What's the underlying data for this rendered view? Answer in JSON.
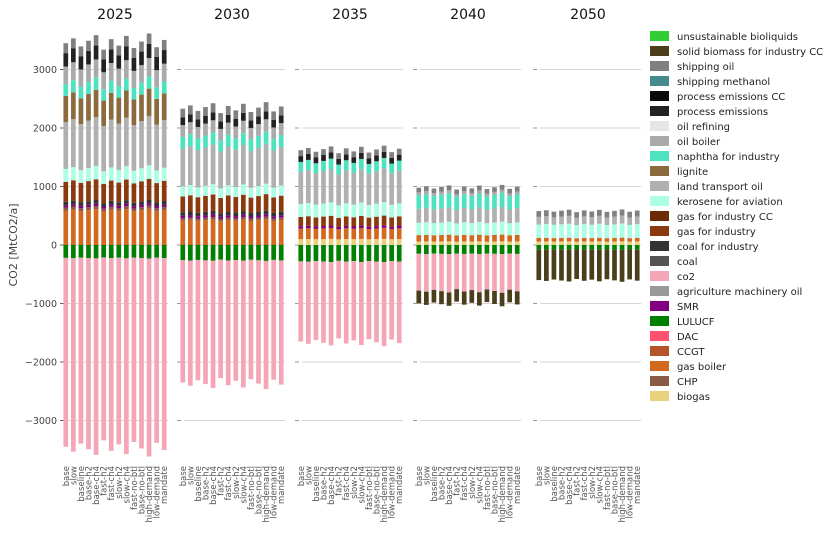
{
  "chart_data": {
    "type": "bar",
    "stacked": true,
    "ylabel": "CO2 [MtCO2/a]",
    "ylim": [
      -3500,
      3500
    ],
    "yticks": [
      -3000,
      -2000,
      -1000,
      0,
      1000,
      2000,
      3000
    ],
    "yticklabels": [
      "−3000",
      "−2000",
      "−1000",
      "0",
      "1000",
      "2000",
      "3000"
    ],
    "grid": true,
    "legend_position": "right",
    "scenarios": [
      "base",
      "slow",
      "baseline",
      "base-h2",
      "base-ch4",
      "fast-h2",
      "fast-ch4",
      "slow-h2",
      "slow-ch4",
      "fast-no-btl",
      "base-no-btl",
      "high-demand",
      "low-demand",
      "mandate"
    ],
    "panels": [
      {
        "year": "2025",
        "segments": [
          {
            "name": "coal",
            "low": 0,
            "high": 0
          },
          {
            "name": "gas boiler",
            "low": 0,
            "high": 590,
            "color": "#d2691e"
          },
          {
            "name": "CHP",
            "low": 590,
            "high": 640,
            "color": "#8a5a44"
          },
          {
            "name": "SMR",
            "low": 640,
            "high": 680,
            "color": "#800080"
          },
          {
            "name": "coal for industry",
            "low": 680,
            "high": 740,
            "color": "#333333"
          },
          {
            "name": "gas for industry",
            "low": 740,
            "high": 1080,
            "color": "#8b3a0f"
          },
          {
            "name": "kerosene for aviation",
            "low": 1080,
            "high": 1300,
            "color": "#aaffe5"
          },
          {
            "name": "land transport oil",
            "low": 1300,
            "high": 2100,
            "color": "#b0b0b0"
          },
          {
            "name": "lignite",
            "low": 2100,
            "high": 2550,
            "color": "#8b6b3d"
          },
          {
            "name": "naphtha for industry",
            "low": 2550,
            "high": 2750,
            "color": "#4de3c0"
          },
          {
            "name": "oil boiler",
            "low": 2750,
            "high": 3050,
            "color": "#aaaaaa"
          },
          {
            "name": "process emissions",
            "low": 3050,
            "high": 3280,
            "color": "#222222"
          },
          {
            "name": "shipping oil",
            "low": 3280,
            "high": 3450,
            "color": "#808080"
          },
          {
            "name": "LULUCF",
            "low": -220,
            "high": 0,
            "color": "#008000"
          },
          {
            "name": "co2",
            "low": -3450,
            "high": -220,
            "color": "#f4a6b6"
          }
        ]
      },
      {
        "year": "2030",
        "segments": [
          {
            "name": "gas boiler",
            "low": 0,
            "high": 420,
            "color": "#d2691e"
          },
          {
            "name": "CHP",
            "low": 420,
            "high": 460,
            "color": "#8a5a44"
          },
          {
            "name": "SMR",
            "low": 460,
            "high": 500,
            "color": "#800080"
          },
          {
            "name": "coal for industry",
            "low": 500,
            "high": 560,
            "color": "#333333"
          },
          {
            "name": "gas for industry",
            "low": 560,
            "high": 830,
            "color": "#8b3a0f"
          },
          {
            "name": "kerosene for aviation",
            "low": 830,
            "high": 1000,
            "color": "#aaffe5"
          },
          {
            "name": "land transport oil",
            "low": 1000,
            "high": 1650,
            "color": "#b0b0b0"
          },
          {
            "name": "naphtha for industry",
            "low": 1650,
            "high": 1850,
            "color": "#4de3c0"
          },
          {
            "name": "oil boiler",
            "low": 1850,
            "high": 2050,
            "color": "#aaaaaa"
          },
          {
            "name": "process emissions",
            "low": 2050,
            "high": 2180,
            "color": "#222222"
          },
          {
            "name": "shipping oil",
            "low": 2180,
            "high": 2330,
            "color": "#808080"
          },
          {
            "name": "LULUCF",
            "low": -260,
            "high": 0,
            "color": "#008000"
          },
          {
            "name": "co2",
            "low": -2350,
            "high": -260,
            "color": "#f4a6b6"
          }
        ]
      },
      {
        "year": "2035",
        "segments": [
          {
            "name": "biogas",
            "low": 0,
            "high": 100,
            "color": "#e8d27c"
          },
          {
            "name": "gas boiler",
            "low": 100,
            "high": 280,
            "color": "#d2691e"
          },
          {
            "name": "SMR",
            "low": 280,
            "high": 320,
            "color": "#800080"
          },
          {
            "name": "gas for industry",
            "low": 320,
            "high": 480,
            "color": "#8b3a0f"
          },
          {
            "name": "kerosene for aviation",
            "low": 480,
            "high": 700,
            "color": "#aaffe5"
          },
          {
            "name": "land transport oil",
            "low": 700,
            "high": 1250,
            "color": "#b0b0b0"
          },
          {
            "name": "naphtha for industry",
            "low": 1250,
            "high": 1420,
            "color": "#4de3c0"
          },
          {
            "name": "process emissions",
            "low": 1420,
            "high": 1520,
            "color": "#222222"
          },
          {
            "name": "shipping oil",
            "low": 1520,
            "high": 1620,
            "color": "#808080"
          },
          {
            "name": "LULUCF",
            "low": -280,
            "high": 0,
            "color": "#008000"
          },
          {
            "name": "co2",
            "low": -1650,
            "high": -280,
            "color": "#f4a6b6"
          }
        ]
      },
      {
        "year": "2040",
        "segments": [
          {
            "name": "biogas",
            "low": 0,
            "high": 60,
            "color": "#e8d27c"
          },
          {
            "name": "gas boiler",
            "low": 60,
            "high": 170,
            "color": "#d2691e"
          },
          {
            "name": "kerosene for aviation",
            "low": 170,
            "high": 380,
            "color": "#aaffe5"
          },
          {
            "name": "land transport oil",
            "low": 380,
            "high": 620,
            "color": "#b0b0b0"
          },
          {
            "name": "naphtha for industry",
            "low": 620,
            "high": 850,
            "color": "#4de3c0"
          },
          {
            "name": "oil boiler",
            "low": 850,
            "high": 900,
            "color": "#aaaaaa"
          },
          {
            "name": "shipping oil",
            "low": 900,
            "high": 980,
            "color": "#808080"
          },
          {
            "name": "LULUCF",
            "low": -150,
            "high": 0,
            "color": "#008000"
          },
          {
            "name": "co2",
            "low": -780,
            "high": -150,
            "color": "#f4a6b6"
          },
          {
            "name": "solid biomass for industry CC",
            "low": -1000,
            "high": -780,
            "color": "#4a3f1a"
          }
        ]
      },
      {
        "year": "2050",
        "segments": [
          {
            "name": "biogas",
            "low": 0,
            "high": 60,
            "color": "#e8d27c"
          },
          {
            "name": "gas boiler",
            "low": 60,
            "high": 120,
            "color": "#d2691e"
          },
          {
            "name": "kerosene for aviation",
            "low": 120,
            "high": 350,
            "color": "#aaffe5"
          },
          {
            "name": "land transport oil",
            "low": 350,
            "high": 480,
            "color": "#b0b0b0"
          },
          {
            "name": "shipping oil",
            "low": 480,
            "high": 580,
            "color": "#808080"
          },
          {
            "name": "LULUCF",
            "low": -80,
            "high": 0,
            "color": "#008000"
          },
          {
            "name": "solid biomass for industry CC",
            "low": -600,
            "high": -80,
            "color": "#4a3f1a"
          }
        ]
      }
    ],
    "legend": [
      {
        "label": "unsustainable bioliquids",
        "color": "#32cd32"
      },
      {
        "label": "solid biomass for industry CC",
        "color": "#4a3f1a"
      },
      {
        "label": "shipping oil",
        "color": "#808080"
      },
      {
        "label": "shipping methanol",
        "color": "#468b8b"
      },
      {
        "label": "process emissions CC",
        "color": "#0a0a0a"
      },
      {
        "label": "process emissions",
        "color": "#222222"
      },
      {
        "label": "oil refining",
        "color": "#e6e6e6"
      },
      {
        "label": "oil boiler",
        "color": "#aaaaaa"
      },
      {
        "label": "naphtha for industry",
        "color": "#4de3c0"
      },
      {
        "label": "lignite",
        "color": "#8b6b3d"
      },
      {
        "label": "land transport oil",
        "color": "#b0b0b0"
      },
      {
        "label": "kerosene for aviation",
        "color": "#aaffe5"
      },
      {
        "label": "gas for industry CC",
        "color": "#6b2b06"
      },
      {
        "label": "gas for industry",
        "color": "#8b3a0f"
      },
      {
        "label": "coal for industry",
        "color": "#333333"
      },
      {
        "label": "coal",
        "color": "#545454"
      },
      {
        "label": "co2",
        "color": "#f4a6b6"
      },
      {
        "label": "agriculture machinery oil",
        "color": "#999999"
      },
      {
        "label": "SMR",
        "color": "#800080"
      },
      {
        "label": "LULUCF",
        "color": "#008000"
      },
      {
        "label": "DAC",
        "color": "#ff5270"
      },
      {
        "label": "CCGT",
        "color": "#b5532a"
      },
      {
        "label": "gas boiler",
        "color": "#d2691e"
      },
      {
        "label": "CHP",
        "color": "#8a5a44"
      },
      {
        "label": "biogas",
        "color": "#e8d27c"
      }
    ]
  }
}
